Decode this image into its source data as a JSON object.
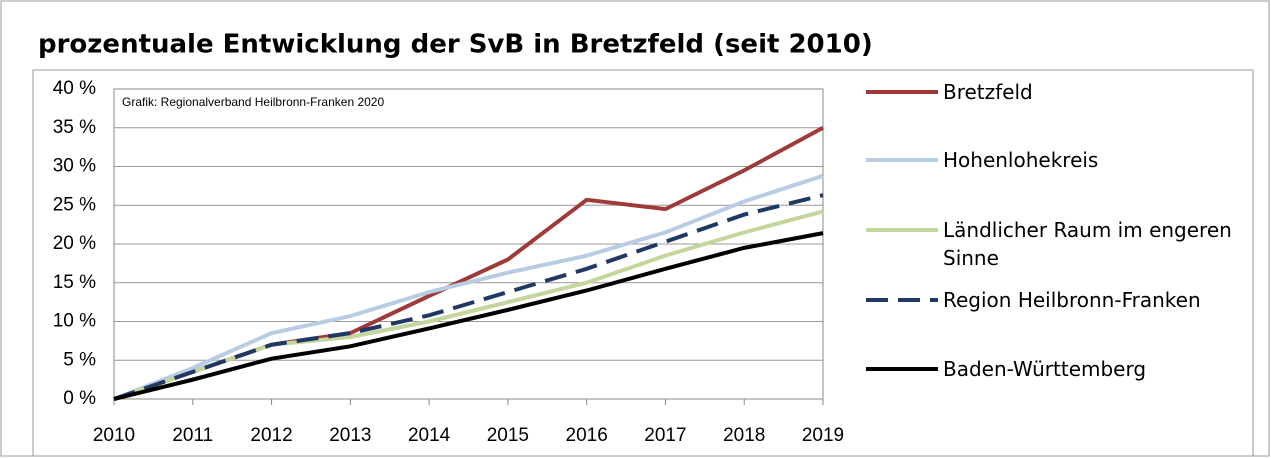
{
  "chart_data": {
    "type": "line",
    "title": "prozentuale Entwicklung der SvB in Bretzfeld (seit 2010)",
    "annotation": "Grafik: Regionalverband Heilbronn-Franken 2020",
    "categories": [
      "2010",
      "2011",
      "2012",
      "2013",
      "2014",
      "2015",
      "2016",
      "2017",
      "2018",
      "2019"
    ],
    "series": [
      {
        "name": "Bretzfeld",
        "color": "#9e3a38",
        "line_style": "solid",
        "values": [
          0,
          3.5,
          7,
          8.5,
          13.3,
          18,
          25.7,
          24.5,
          29.5,
          35
        ]
      },
      {
        "name": "Hohenlohekreis",
        "color": "#b8cce4",
        "line_style": "solid",
        "values": [
          0,
          4,
          8.5,
          10.7,
          13.8,
          16.3,
          18.5,
          21.5,
          25.5,
          28.8
        ]
      },
      {
        "name": "Ländlicher Raum im engeren Sinne",
        "color": "#c3d69b",
        "line_style": "solid",
        "values": [
          0,
          3.5,
          7,
          8,
          10,
          12.5,
          15,
          18.5,
          21.5,
          24.2
        ]
      },
      {
        "name": "Region Heilbronn-Franken",
        "color": "#1f3864",
        "line_style": "dashed",
        "values": [
          0,
          3.5,
          7,
          8.5,
          10.8,
          13.8,
          16.8,
          20.3,
          23.8,
          26.3
        ]
      },
      {
        "name": "Baden-Württemberg",
        "color": "#000000",
        "line_style": "solid",
        "values": [
          0,
          2.5,
          5.2,
          6.8,
          9.1,
          11.5,
          14,
          16.8,
          19.5,
          21.4
        ]
      }
    ],
    "ylim": [
      0,
      40
    ],
    "yticks": [
      {
        "value": 0,
        "label": "0 %"
      },
      {
        "value": 5,
        "label": "5 %"
      },
      {
        "value": 10,
        "label": "10 %"
      },
      {
        "value": 15,
        "label": "15 %"
      },
      {
        "value": 20,
        "label": "20 %"
      },
      {
        "value": 25,
        "label": "25 %"
      },
      {
        "value": 30,
        "label": "30 %"
      },
      {
        "value": 35,
        "label": "35 %"
      },
      {
        "value": 40,
        "label": "40 %"
      }
    ],
    "grid": true,
    "legend": "right"
  }
}
